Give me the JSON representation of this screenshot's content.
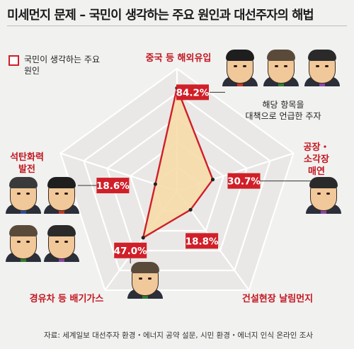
{
  "title": "미세먼지 문제 – 국민이 생각하는 주요 원인과 대선주자의 해법",
  "legend": {
    "label": "국민이 생각하는 주요 원인"
  },
  "callout": "해당 항목을 대책으로 언급한 주자",
  "source": "자료: 세계일보 대선주자 환경・에너지 공약 설문, 시민 환경・에너지 인식 온라인 조사",
  "colors": {
    "series": "#d01f28",
    "fill": "#f7dca9",
    "grid": "#ffffff",
    "category": "#c2161f"
  },
  "chart_data": {
    "type": "radar",
    "axes": [
      "중국 등 해외유입",
      "공장・소각장 매연",
      "건설현장 날림먼지",
      "경유차 등 배기가스",
      "석탄화력 발전"
    ],
    "axis_label_lines": [
      [
        "중국 등 해외유입"
      ],
      [
        "공장・",
        "소각장",
        "매연"
      ],
      [
        "건설현장 날림먼지"
      ],
      [
        "경유차 등 배기가스"
      ],
      [
        "석탄화력",
        "발전"
      ]
    ],
    "series": [
      {
        "name": "국민이 생각하는 주요 원인",
        "values": [
          84.2,
          30.7,
          18.8,
          47.0,
          18.6
        ]
      }
    ],
    "value_labels": [
      "84.2%",
      "30.7%",
      "18.8%",
      "47.0%",
      "18.6%"
    ],
    "range": [
      0,
      100
    ],
    "grid_levels": 5,
    "grid": true,
    "legend_position": "top-left"
  },
  "candidates": {
    "haeoe": 3,
    "factory": 1,
    "diesel": 1,
    "coal": 4
  }
}
